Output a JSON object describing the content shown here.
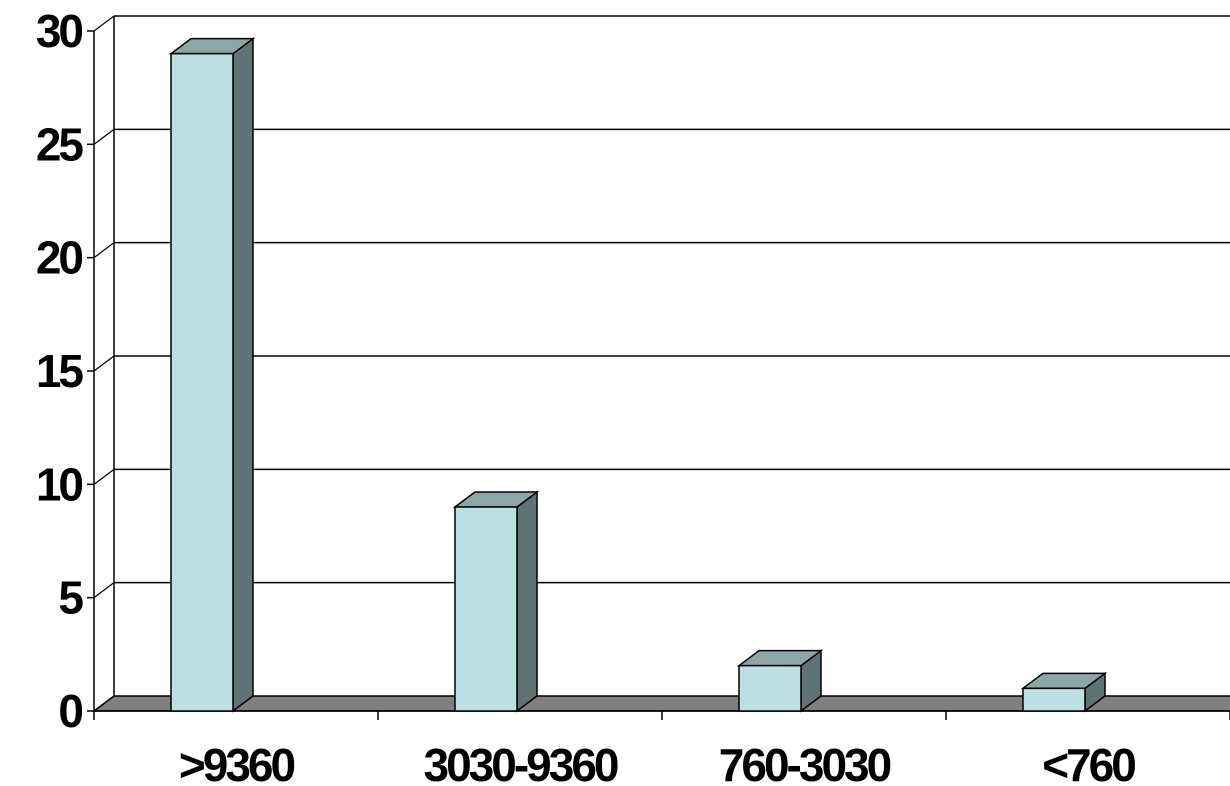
{
  "chart_data": {
    "type": "bar",
    "style": "3d-column",
    "categories": [
      ">9360",
      "3030-9360",
      "760-3030",
      "<760"
    ],
    "values": [
      29,
      9,
      2,
      1
    ],
    "title": "",
    "xlabel": "",
    "ylabel": "",
    "ylim": [
      0,
      30
    ],
    "yticks": [
      "0",
      "5",
      "10",
      "15",
      "20",
      "25",
      "30"
    ],
    "grid": true,
    "legend": "none"
  },
  "colors": {
    "bar_front": "#BBDFE3",
    "bar_top": "#8DA7A9",
    "bar_side": "#5F7274",
    "floor": "#808080",
    "gridline": "#000000",
    "background": "#FFFFFF"
  }
}
